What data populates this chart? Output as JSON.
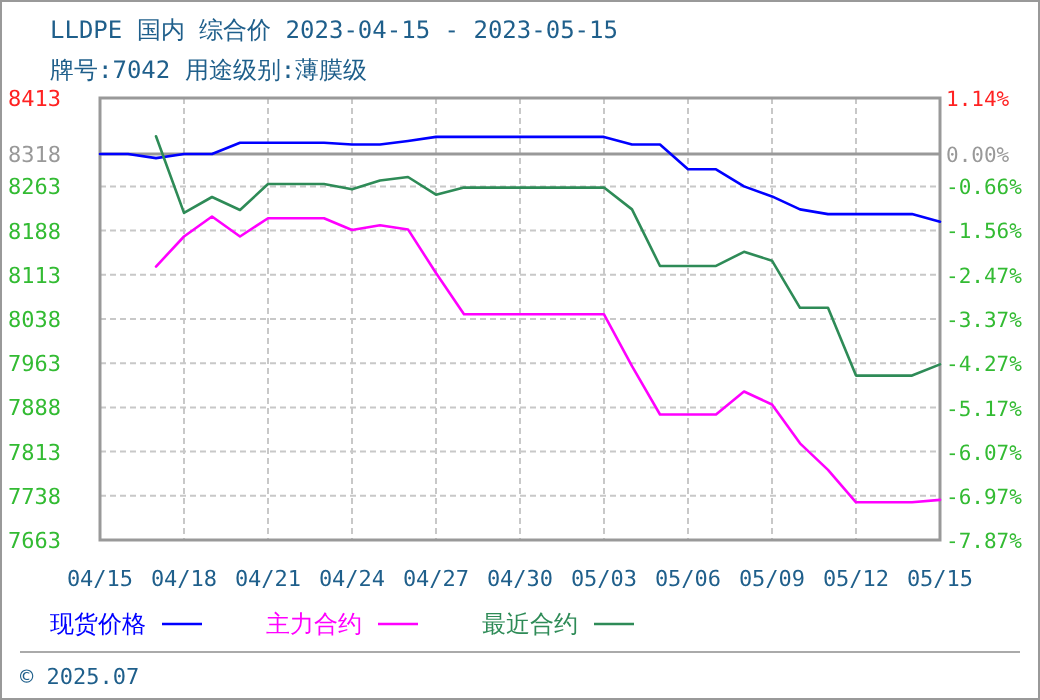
{
  "chart_data": {
    "type": "line",
    "title": "LLDPE 国内 综合价 2023-04-15 - 2023-05-15",
    "subtitle": "牌号:7042 用途级别:薄膜级",
    "annotations": [
      "© 2025.07"
    ],
    "xlim": [
      "2023-04-15",
      "2023-05-15"
    ],
    "xticks": [
      {
        "value": "2023-04-15",
        "label": "04/15"
      },
      {
        "value": "2023-04-18",
        "label": "04/18"
      },
      {
        "value": "2023-04-21",
        "label": "04/21"
      },
      {
        "value": "2023-04-24",
        "label": "04/24"
      },
      {
        "value": "2023-04-27",
        "label": "04/27"
      },
      {
        "value": "2023-04-30",
        "label": "04/30"
      },
      {
        "value": "2023-05-03",
        "label": "05/03"
      },
      {
        "value": "2023-05-06",
        "label": "05/06"
      },
      {
        "value": "2023-05-09",
        "label": "05/09"
      },
      {
        "value": "2023-05-12",
        "label": "05/12"
      },
      {
        "value": "2023-05-15",
        "label": "05/15"
      }
    ],
    "ylim": [
      7663,
      8413
    ],
    "yticks": [
      7663,
      7738,
      7813,
      7888,
      7963,
      8038,
      8113,
      8188,
      8263,
      8318,
      8413
    ],
    "y2lim": [
      -7.87,
      1.14
    ],
    "y2ticks": [
      {
        "value": -7.87,
        "label": "-7.87%"
      },
      {
        "value": -6.97,
        "label": "-6.97%"
      },
      {
        "value": -6.07,
        "label": "-6.07%"
      },
      {
        "value": -5.17,
        "label": "-5.17%"
      },
      {
        "value": -4.27,
        "label": "-4.27%"
      },
      {
        "value": -3.37,
        "label": "-3.37%"
      },
      {
        "value": -2.47,
        "label": "-2.47%"
      },
      {
        "value": -1.56,
        "label": "-1.56%"
      },
      {
        "value": -0.66,
        "label": "-0.66%"
      },
      {
        "value": 0,
        "label": "0.00%"
      },
      {
        "value": 1.14,
        "label": "1.14%"
      }
    ],
    "grid": true,
    "legend": "bottom",
    "line_style": "solid",
    "marker": "none",
    "ref_lines": [
      {
        "axis": "y",
        "value": 8318,
        "label": null,
        "color": "#999999",
        "line_style": "solid"
      }
    ],
    "series": [
      {
        "name": "现货价格",
        "color": "#0000ff",
        "x": [
          "2023-04-15",
          "2023-04-16",
          "2023-04-17",
          "2023-04-18",
          "2023-04-19",
          "2023-04-20",
          "2023-04-21",
          "2023-04-22",
          "2023-04-23",
          "2023-04-24",
          "2023-04-25",
          "2023-04-26",
          "2023-04-27",
          "2023-04-28",
          "2023-04-29",
          "2023-04-30",
          "2023-05-01",
          "2023-05-02",
          "2023-05-03",
          "2023-05-04",
          "2023-05-05",
          "2023-05-06",
          "2023-05-07",
          "2023-05-08",
          "2023-05-09",
          "2023-05-10",
          "2023-05-11",
          "2023-05-12",
          "2023-05-13",
          "2023-05-14",
          "2023-05-15"
        ],
        "values": [
          8318,
          8318,
          8311,
          8318,
          8318,
          8337,
          8337,
          8337,
          8337,
          8334,
          8334,
          8340,
          8347,
          8347,
          8347,
          8347,
          8347,
          8347,
          8347,
          8334,
          8334,
          8292,
          8292,
          8263,
          8246,
          8224,
          8216,
          8216,
          8216,
          8216,
          8203
        ]
      },
      {
        "name": "主力合约",
        "color": "#ff00ff",
        "x": [
          "2023-04-17",
          "2023-04-18",
          "2023-04-19",
          "2023-04-20",
          "2023-04-21",
          "2023-04-22",
          "2023-04-23",
          "2023-04-24",
          "2023-04-25",
          "2023-04-26",
          "2023-04-27",
          "2023-04-28",
          "2023-04-29",
          "2023-04-30",
          "2023-05-01",
          "2023-05-02",
          "2023-05-03",
          "2023-05-04",
          "2023-05-05",
          "2023-05-06",
          "2023-05-07",
          "2023-05-08",
          "2023-05-09",
          "2023-05-10",
          "2023-05-11",
          "2023-05-12",
          "2023-05-13",
          "2023-05-14",
          "2023-05-15"
        ],
        "values": [
          8127,
          8178,
          8212,
          8178,
          8209,
          8209,
          8209,
          8189,
          8197,
          8190,
          8116,
          8046,
          8046,
          8046,
          8046,
          8046,
          8046,
          7958,
          7876,
          7876,
          7876,
          7915,
          7893,
          7827,
          7782,
          7727,
          7727,
          7727,
          7731
        ]
      },
      {
        "name": "最近合约",
        "color": "#2e8b57",
        "x": [
          "2023-04-17",
          "2023-04-18",
          "2023-04-19",
          "2023-04-20",
          "2023-04-21",
          "2023-04-22",
          "2023-04-23",
          "2023-04-24",
          "2023-04-25",
          "2023-04-26",
          "2023-04-27",
          "2023-04-28",
          "2023-04-29",
          "2023-04-30",
          "2023-05-01",
          "2023-05-02",
          "2023-05-03",
          "2023-05-04",
          "2023-05-05",
          "2023-05-06",
          "2023-05-07",
          "2023-05-08",
          "2023-05-09",
          "2023-05-10",
          "2023-05-11",
          "2023-05-12",
          "2023-05-13",
          "2023-05-14",
          "2023-05-15"
        ],
        "values": [
          8348,
          8218,
          8245,
          8223,
          8267,
          8267,
          8267,
          8258,
          8273,
          8279,
          8249,
          8261,
          8261,
          8261,
          8261,
          8261,
          8261,
          8224,
          8128,
          8128,
          8128,
          8152,
          8137,
          8057,
          8057,
          7942,
          7942,
          7942,
          7961
        ]
      }
    ]
  }
}
